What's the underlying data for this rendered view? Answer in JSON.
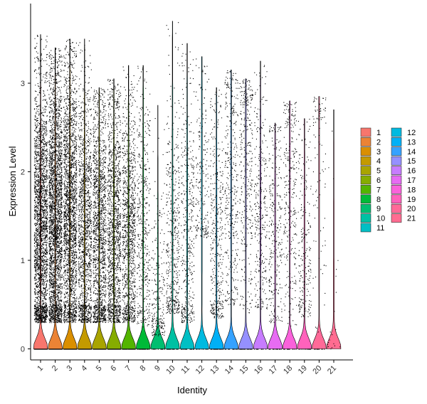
{
  "chart_data": {
    "type": "violin",
    "xlabel": "Identity",
    "ylabel": "Expression Level",
    "ylim": [
      -0.1,
      3.9
    ],
    "yticks": [
      0,
      1,
      2,
      3
    ],
    "categories": [
      "1",
      "2",
      "3",
      "4",
      "5",
      "6",
      "7",
      "8",
      "9",
      "10",
      "11",
      "12",
      "13",
      "14",
      "15",
      "16",
      "17",
      "18",
      "19",
      "20",
      "21"
    ],
    "colors": [
      "#F8766D",
      "#EB8335",
      "#DA8F00",
      "#C49A00",
      "#A9A400",
      "#86AC00",
      "#53B400",
      "#00BA38",
      "#00BE70",
      "#00C1A3",
      "#00BFC4",
      "#00BAE0",
      "#00B0F6",
      "#35A2FF",
      "#9590FF",
      "#C77CFF",
      "#E76BF3",
      "#FA62DB",
      "#FF62BC",
      "#FF6A98",
      "#FF6C91"
    ],
    "series": [
      {
        "values": [
          1.35,
          1.9,
          0.3,
          3.55
        ]
      },
      {
        "values": [
          1.45,
          1.9,
          0.3,
          3.4
        ]
      },
      {
        "values": [
          1.55,
          1.9,
          0.3,
          3.5
        ]
      },
      {
        "values": [
          1.3,
          1.85,
          0.3,
          3.5
        ]
      },
      {
        "values": [
          1.3,
          1.85,
          0.3,
          2.95
        ]
      },
      {
        "values": [
          1.3,
          1.85,
          0.3,
          3.05
        ]
      },
      {
        "values": [
          1.3,
          1.75,
          0.3,
          3.2
        ]
      },
      {
        "values": [
          1.4,
          1.8,
          0.25,
          3.2
        ]
      },
      {
        "values": [
          0.5,
          1.45,
          0.15,
          2.75
        ]
      },
      {
        "values": [
          1.25,
          2.0,
          0.4,
          3.7
        ]
      },
      {
        "values": [
          1.35,
          2.0,
          0.3,
          3.45
        ]
      },
      {
        "values": [
          1.95,
          1.7,
          1.25,
          3.3
        ]
      },
      {
        "values": [
          1.2,
          1.9,
          0.35,
          2.95
        ]
      },
      {
        "values": [
          1.85,
          1.9,
          0.5,
          3.15
        ]
      },
      {
        "values": [
          2.0,
          2.1,
          0.4,
          3.05
        ]
      },
      {
        "values": [
          1.55,
          1.75,
          0.45,
          3.25
        ]
      },
      {
        "values": [
          1.3,
          1.8,
          0.3,
          2.55
        ]
      },
      {
        "values": [
          1.75,
          1.85,
          0.2,
          2.8
        ]
      },
      {
        "values": [
          1.2,
          1.65,
          0.35,
          2.6
        ]
      },
      {
        "values": [
          2.25,
          2.55,
          0.05,
          2.85
        ]
      },
      {
        "values": [
          0.0,
          2.7,
          0.0,
          2.7
        ]
      }
    ]
  }
}
